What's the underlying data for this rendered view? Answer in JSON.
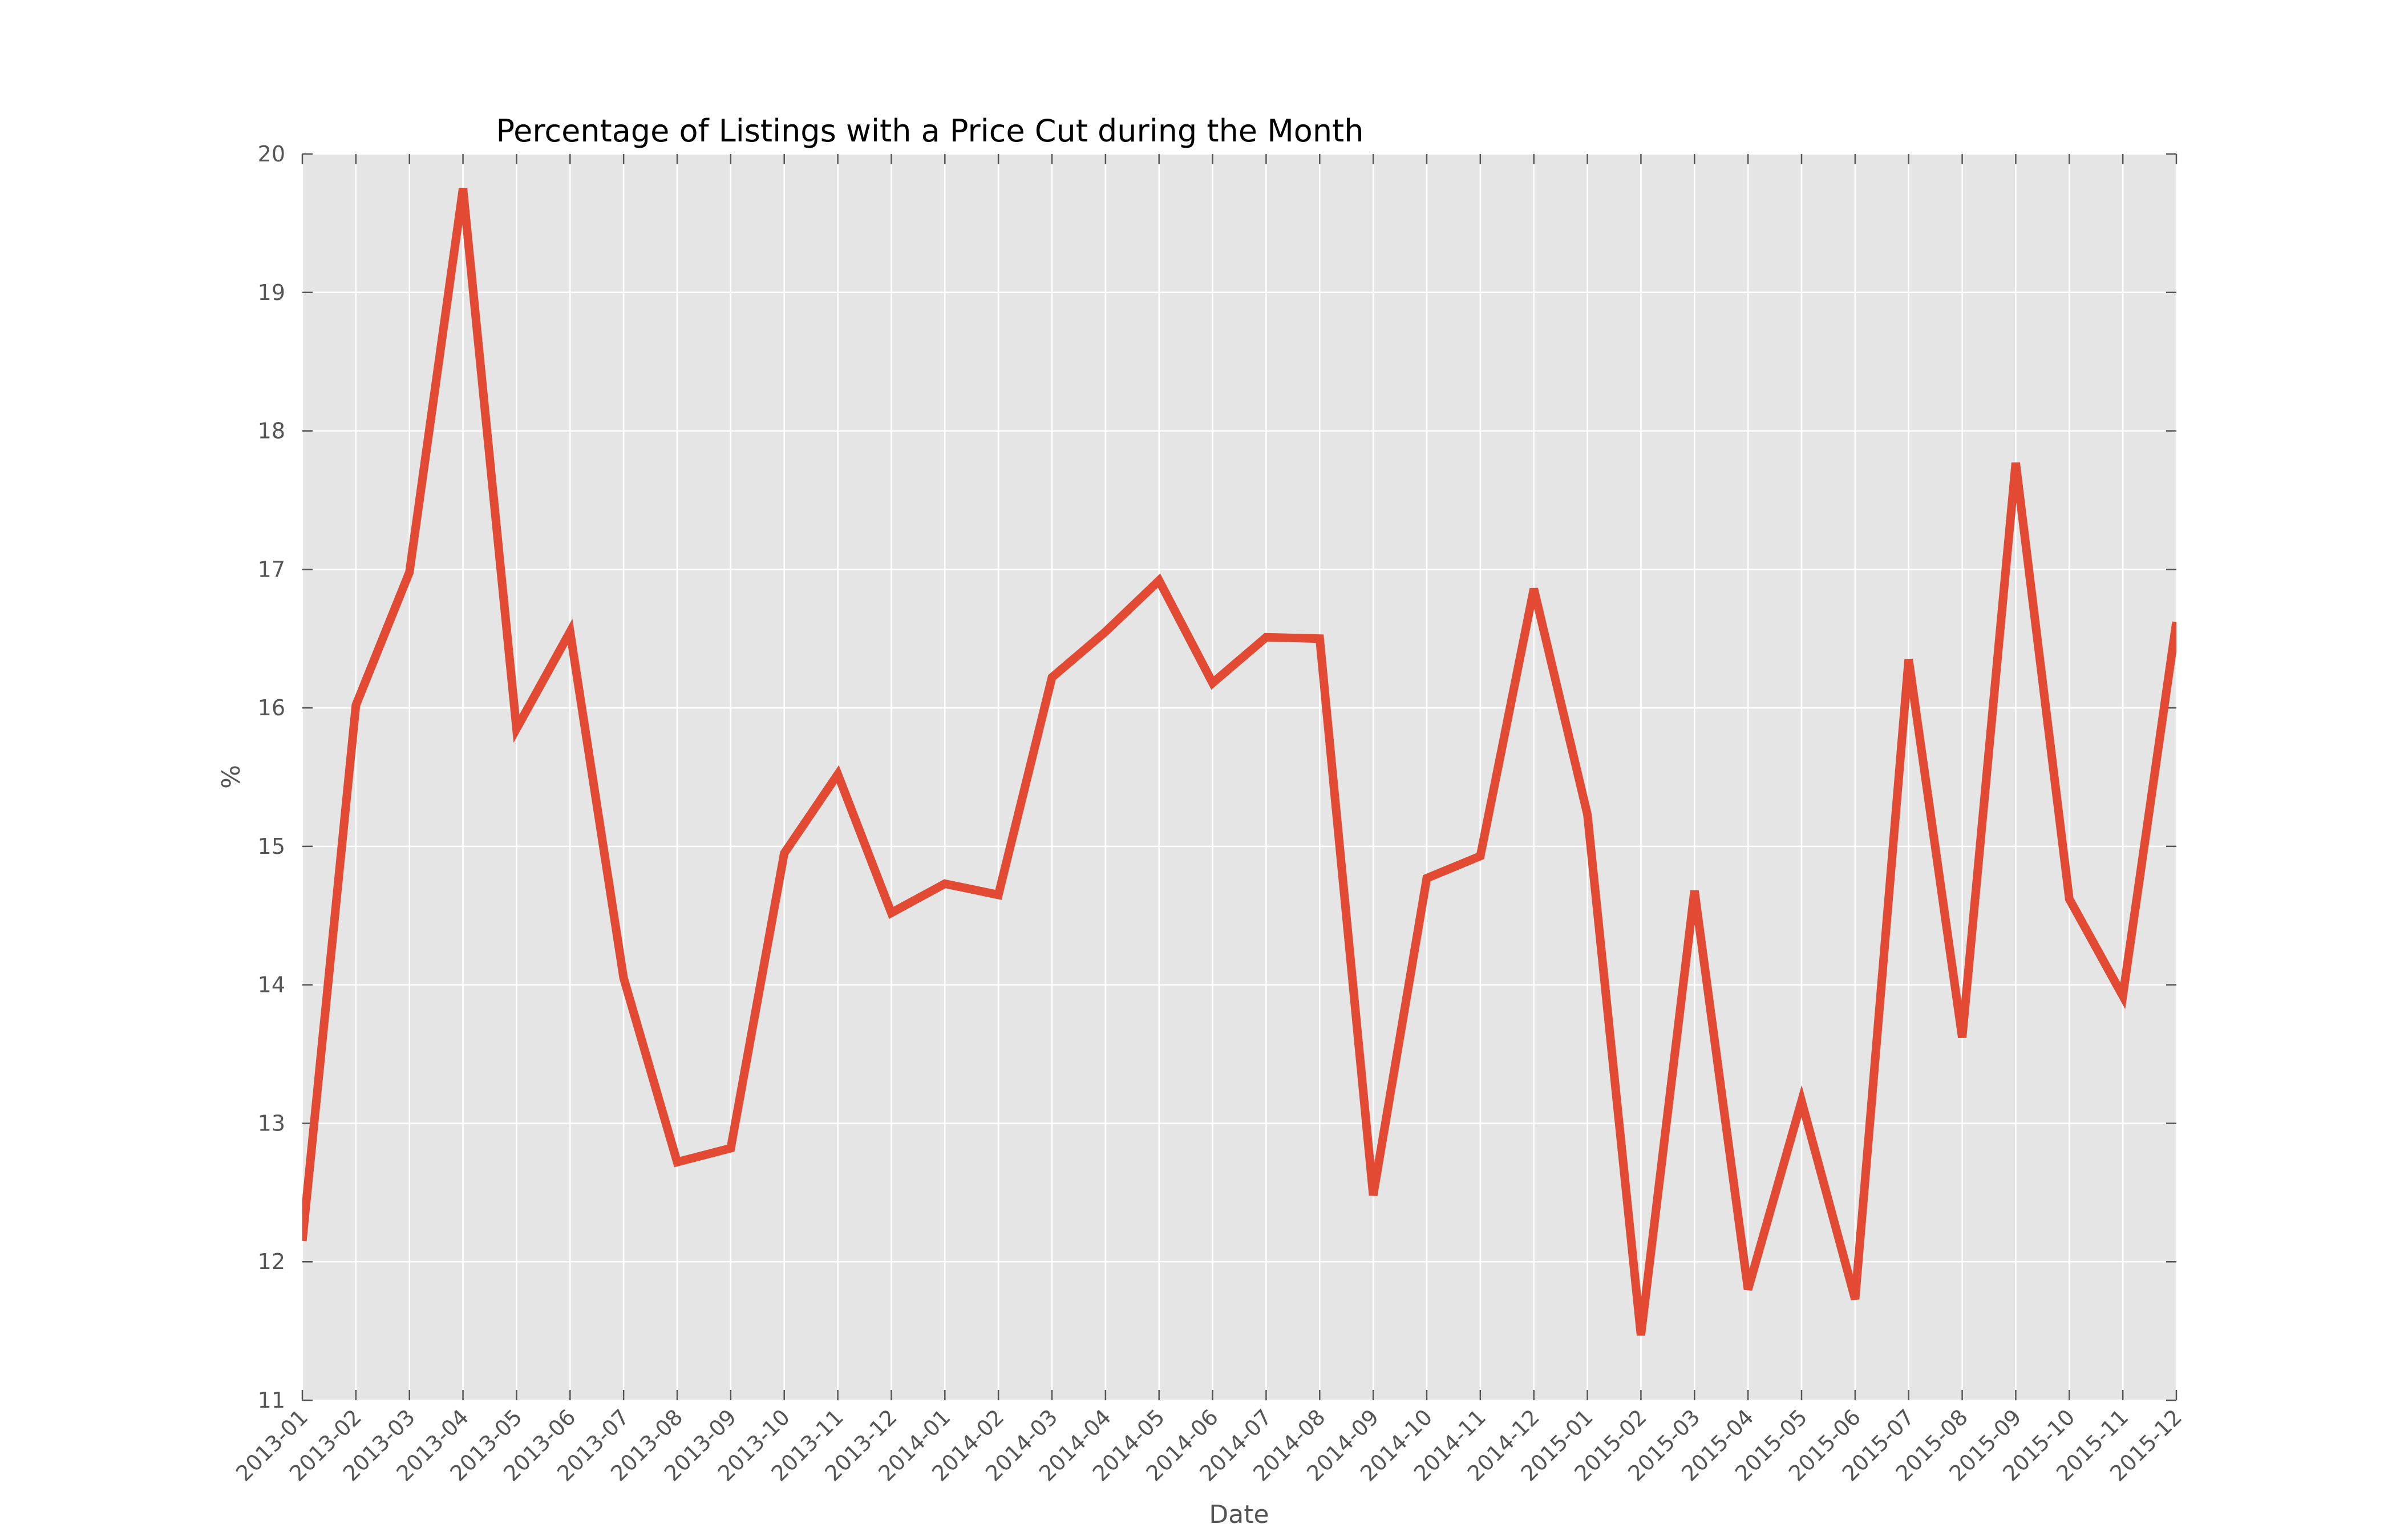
{
  "chart_data": {
    "type": "line",
    "title": "Percentage of Listings with a Price Cut during the Month",
    "xlabel": "Date",
    "ylabel": "%",
    "ylim": [
      11,
      20
    ],
    "y_ticks": [
      "11",
      "12",
      "13",
      "14",
      "15",
      "16",
      "17",
      "18",
      "19",
      "20"
    ],
    "grid": true,
    "background_color": "#e5e5e5",
    "line_color": "#e24a33",
    "categories": [
      "2013-01",
      "2013-02",
      "2013-03",
      "2013-04",
      "2013-05",
      "2013-06",
      "2013-07",
      "2013-08",
      "2013-09",
      "2013-10",
      "2013-11",
      "2013-12",
      "2014-01",
      "2014-02",
      "2014-03",
      "2014-04",
      "2014-05",
      "2014-06",
      "2014-07",
      "2014-08",
      "2014-09",
      "2014-10",
      "2014-11",
      "2014-12",
      "2015-01",
      "2015-02",
      "2015-03",
      "2015-04",
      "2015-05",
      "2015-06",
      "2015-07",
      "2015-08",
      "2015-09",
      "2015-10",
      "2015-11",
      "2015-12"
    ],
    "series": [
      {
        "values": [
          12.15,
          16.02,
          16.98,
          19.75,
          15.85,
          16.55,
          14.05,
          12.72,
          12.82,
          14.95,
          15.52,
          14.52,
          14.73,
          14.65,
          16.22,
          16.55,
          16.92,
          16.18,
          16.51,
          16.5,
          12.48,
          14.77,
          14.93,
          16.86,
          15.23,
          11.47,
          14.68,
          11.8,
          13.16,
          11.73,
          16.35,
          13.62,
          17.77,
          14.62,
          13.92,
          16.62
        ]
      }
    ]
  }
}
